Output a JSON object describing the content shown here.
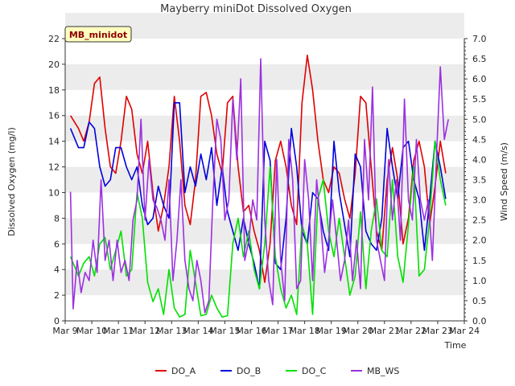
{
  "chart_data": {
    "type": "line",
    "title": "Mayberry miniDot Dissolved Oxygen",
    "badge": "MB_minidot",
    "xlabel": "Time",
    "ylabel_left": "Dissolved Oxygen (mg/l)",
    "ylabel_right": "Wind Speed (m/s)",
    "xlim": [
      0,
      15
    ],
    "ylim_left": [
      0,
      22
    ],
    "ylim_right": [
      0,
      7
    ],
    "x_tick_labels": [
      "Mar 9",
      "Mar 10",
      "Mar 11",
      "Mar 12",
      "Mar 13",
      "Mar 14",
      "Mar 15",
      "Mar 16",
      "Mar 17",
      "Mar 18",
      "Mar 19",
      "Mar 20",
      "Mar 21",
      "Mar 22",
      "Mar 23",
      "Mar 24"
    ],
    "y_ticks_left": [
      "0",
      "2",
      "4",
      "6",
      "8",
      "10",
      "12",
      "14",
      "16",
      "18",
      "20",
      "22"
    ],
    "y_ticks_right": [
      "0.0",
      "0.5",
      "1.0",
      "1.5",
      "2.0",
      "2.5",
      "3.0",
      "3.5",
      "4.0",
      "4.5",
      "5.0",
      "5.5",
      "6.0",
      "6.5",
      "7.0"
    ],
    "grid": "horizontal bands",
    "legend_position": "bottom",
    "series": [
      {
        "name": "DO_A",
        "color": "#e00000",
        "axis": "left",
        "x": [
          0.2,
          0.5,
          0.7,
          0.9,
          1.1,
          1.3,
          1.5,
          1.7,
          1.9,
          2.1,
          2.3,
          2.5,
          2.7,
          2.9,
          3.1,
          3.3,
          3.5,
          3.7,
          3.9,
          4.1,
          4.3,
          4.5,
          4.7,
          4.9,
          5.1,
          5.3,
          5.5,
          5.7,
          5.9,
          6.1,
          6.3,
          6.5,
          6.7,
          6.9,
          7.1,
          7.3,
          7.5,
          7.7,
          7.9,
          8.1,
          8.3,
          8.5,
          8.7,
          8.9,
          9.1,
          9.3,
          9.5,
          9.7,
          9.9,
          10.1,
          10.3,
          10.5,
          10.7,
          10.9,
          11.1,
          11.3,
          11.5,
          11.7,
          11.9,
          12.1,
          12.3,
          12.5,
          12.7,
          12.9,
          13.1,
          13.3,
          13.5,
          13.7,
          13.9,
          14.1,
          14.3
        ],
        "y": [
          16.0,
          15.0,
          14.0,
          15.5,
          18.5,
          19.0,
          15.0,
          12.0,
          11.5,
          14.0,
          17.5,
          16.5,
          13.0,
          11.5,
          14.0,
          10.0,
          7.0,
          9.0,
          12.0,
          17.5,
          14.0,
          9.0,
          7.5,
          11.0,
          17.5,
          17.8,
          16.0,
          13.0,
          11.5,
          17.0,
          17.5,
          12.0,
          8.5,
          9.0,
          7.0,
          5.5,
          3.0,
          6.0,
          12.5,
          14.0,
          12.0,
          9.0,
          7.5,
          17.0,
          20.7,
          18.0,
          14.0,
          11.0,
          10.0,
          12.0,
          11.5,
          9.5,
          8.0,
          11.5,
          17.5,
          17.0,
          12.0,
          7.0,
          5.5,
          11.0,
          13.5,
          11.0,
          6.0,
          8.0,
          12.5,
          14.0,
          12.0,
          7.5,
          10.5,
          14.0,
          11.5
        ]
      },
      {
        "name": "DO_B",
        "color": "#0000dd",
        "axis": "left",
        "x": [
          0.2,
          0.5,
          0.7,
          0.9,
          1.1,
          1.3,
          1.5,
          1.7,
          1.9,
          2.1,
          2.3,
          2.5,
          2.7,
          2.9,
          3.1,
          3.3,
          3.5,
          3.7,
          3.9,
          4.1,
          4.3,
          4.5,
          4.7,
          4.9,
          5.1,
          5.3,
          5.5,
          5.7,
          5.9,
          6.1,
          6.3,
          6.5,
          6.7,
          6.9,
          7.1,
          7.3,
          7.5,
          7.7,
          7.9,
          8.1,
          8.3,
          8.5,
          8.7,
          8.9,
          9.1,
          9.3,
          9.5,
          9.7,
          9.9,
          10.1,
          10.3,
          10.5,
          10.7,
          10.9,
          11.1,
          11.3,
          11.5,
          11.7,
          11.9,
          12.1,
          12.3,
          12.5,
          12.7,
          12.9,
          13.1,
          13.3,
          13.5,
          13.7,
          13.9,
          14.1,
          14.3
        ],
        "y": [
          15.0,
          13.5,
          13.5,
          15.5,
          15.0,
          12.0,
          10.5,
          11.0,
          13.5,
          13.5,
          12.0,
          11.0,
          12.0,
          9.0,
          7.5,
          8.0,
          10.5,
          9.0,
          8.0,
          17.0,
          17.0,
          10.0,
          12.0,
          10.5,
          13.0,
          11.0,
          13.5,
          9.0,
          12.0,
          8.5,
          7.0,
          5.5,
          8.0,
          6.0,
          4.5,
          2.5,
          14.0,
          12.5,
          4.5,
          4.0,
          8.0,
          15.0,
          12.0,
          7.0,
          6.0,
          10.0,
          9.5,
          7.0,
          5.5,
          14.0,
          10.0,
          7.5,
          5.0,
          13.0,
          12.0,
          7.0,
          6.0,
          5.5,
          8.0,
          15.0,
          12.0,
          9.5,
          13.5,
          14.0,
          11.0,
          9.5,
          5.5,
          9.5,
          14.0,
          12.0,
          9.5
        ]
      },
      {
        "name": "DO_C",
        "color": "#00e000",
        "axis": "left",
        "x": [
          0.2,
          0.5,
          0.7,
          0.9,
          1.1,
          1.3,
          1.5,
          1.7,
          1.9,
          2.1,
          2.3,
          2.5,
          2.7,
          2.9,
          3.1,
          3.3,
          3.5,
          3.7,
          3.9,
          4.1,
          4.3,
          4.5,
          4.7,
          4.9,
          5.1,
          5.3,
          5.5,
          5.7,
          5.9,
          6.1,
          6.3,
          6.5,
          6.7,
          6.9,
          7.1,
          7.3,
          7.5,
          7.7,
          7.9,
          8.1,
          8.3,
          8.5,
          8.7,
          8.9,
          9.1,
          9.3,
          9.5,
          9.7,
          9.9,
          10.1,
          10.3,
          10.5,
          10.7,
          10.9,
          11.1,
          11.3,
          11.5,
          11.7,
          11.9,
          12.1,
          12.3,
          12.5,
          12.7,
          12.9,
          13.1,
          13.3,
          13.5,
          13.7,
          13.9,
          14.1,
          14.3
        ],
        "y": [
          5.0,
          3.5,
          4.5,
          5.0,
          3.5,
          6.0,
          6.5,
          4.0,
          5.5,
          7.0,
          3.5,
          4.0,
          10.0,
          8.0,
          3.0,
          1.5,
          2.5,
          0.5,
          4.0,
          1.0,
          0.3,
          0.5,
          5.5,
          3.0,
          0.4,
          0.5,
          2.0,
          1.0,
          0.3,
          0.4,
          6.0,
          8.0,
          5.0,
          7.0,
          4.0,
          2.5,
          6.0,
          12.0,
          5.0,
          2.5,
          1.0,
          2.0,
          0.5,
          7.5,
          6.0,
          0.5,
          9.5,
          11.0,
          7.0,
          5.0,
          8.0,
          5.0,
          2.0,
          3.5,
          8.5,
          2.5,
          7.0,
          9.5,
          5.5,
          5.0,
          11.0,
          5.0,
          3.0,
          7.5,
          12.0,
          3.5,
          4.0,
          8.0,
          14.0,
          11.0,
          9.0
        ]
      },
      {
        "name": "MB_WS",
        "color": "#9b30e0",
        "axis": "right",
        "x": [
          0.2,
          0.3,
          0.45,
          0.6,
          0.75,
          0.9,
          1.05,
          1.2,
          1.35,
          1.5,
          1.65,
          1.8,
          1.95,
          2.1,
          2.25,
          2.4,
          2.55,
          2.7,
          2.85,
          3.0,
          3.15,
          3.3,
          3.45,
          3.6,
          3.75,
          3.9,
          4.05,
          4.2,
          4.35,
          4.5,
          4.65,
          4.8,
          4.95,
          5.1,
          5.25,
          5.4,
          5.55,
          5.7,
          5.85,
          6.0,
          6.15,
          6.3,
          6.45,
          6.6,
          6.75,
          6.9,
          7.05,
          7.2,
          7.35,
          7.5,
          7.65,
          7.8,
          7.95,
          8.1,
          8.25,
          8.4,
          8.55,
          8.7,
          8.85,
          9.0,
          9.15,
          9.3,
          9.45,
          9.6,
          9.75,
          9.9,
          10.05,
          10.2,
          10.35,
          10.5,
          10.65,
          10.8,
          10.95,
          11.1,
          11.25,
          11.4,
          11.55,
          11.7,
          11.85,
          12.0,
          12.15,
          12.3,
          12.45,
          12.6,
          12.75,
          12.9,
          13.05,
          13.2,
          13.35,
          13.5,
          13.65,
          13.8,
          13.95,
          14.1,
          14.25,
          14.4
        ],
        "y": [
          3.2,
          0.3,
          1.5,
          0.7,
          1.2,
          1.0,
          2.0,
          1.2,
          3.5,
          1.5,
          2.0,
          1.0,
          2.0,
          1.2,
          1.5,
          1.0,
          2.5,
          3.0,
          5.0,
          2.5,
          4.0,
          3.0,
          2.8,
          2.5,
          2.0,
          3.5,
          1.0,
          2.0,
          3.5,
          1.5,
          0.8,
          0.5,
          1.5,
          1.0,
          0.2,
          0.5,
          3.0,
          5.0,
          4.5,
          2.5,
          3.0,
          5.5,
          4.0,
          6.0,
          1.5,
          2.0,
          3.0,
          2.5,
          6.5,
          2.5,
          1.0,
          0.4,
          4.0,
          1.5,
          0.5,
          4.5,
          3.5,
          0.8,
          1.0,
          4.0,
          3.0,
          1.0,
          3.5,
          2.5,
          1.2,
          2.0,
          3.0,
          2.0,
          1.0,
          1.5,
          2.5,
          1.0,
          2.0,
          0.8,
          4.5,
          3.0,
          5.8,
          2.0,
          1.5,
          1.0,
          4.0,
          2.5,
          3.5,
          2.0,
          5.5,
          3.0,
          2.5,
          4.5,
          3.0,
          2.5,
          3.0,
          1.5,
          4.0,
          6.3,
          4.5,
          5.0
        ]
      }
    ]
  }
}
